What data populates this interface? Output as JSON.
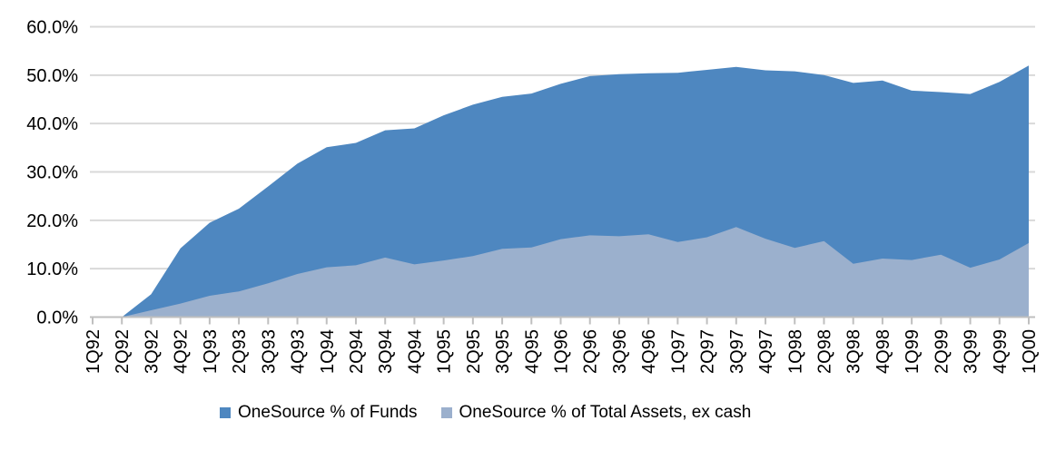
{
  "chart_data": {
    "type": "area",
    "title": "",
    "xlabel": "",
    "ylabel": "",
    "categories": [
      "1Q92",
      "2Q92",
      "3Q92",
      "4Q92",
      "1Q93",
      "2Q93",
      "3Q93",
      "4Q93",
      "1Q94",
      "2Q94",
      "3Q94",
      "4Q94",
      "1Q95",
      "2Q95",
      "3Q95",
      "4Q95",
      "1Q96",
      "2Q96",
      "3Q96",
      "4Q96",
      "1Q97",
      "2Q97",
      "3Q97",
      "4Q97",
      "1Q98",
      "2Q98",
      "3Q98",
      "4Q98",
      "1Q99",
      "2Q99",
      "3Q99",
      "4Q99",
      "1Q00"
    ],
    "series": [
      {
        "name": "OneSource % of Funds",
        "color": "#4E87C0",
        "values": [
          0.0,
          0.0,
          4.7,
          14.2,
          19.5,
          22.4,
          27.0,
          31.7,
          35.1,
          36.0,
          38.6,
          39.0,
          41.7,
          43.9,
          45.5,
          46.2,
          48.2,
          49.8,
          50.2,
          50.4,
          50.5,
          51.1,
          51.7,
          51.0,
          50.8,
          50.0,
          48.4,
          48.9,
          46.8,
          46.5,
          46.1,
          48.6,
          52.0
        ]
      },
      {
        "name": "OneSource % of Total Assets, ex cash",
        "color": "#9BB0CD",
        "values": [
          0.0,
          0.0,
          1.4,
          2.8,
          4.4,
          5.3,
          7.0,
          8.9,
          10.3,
          10.7,
          12.3,
          10.9,
          11.7,
          12.6,
          14.1,
          14.4,
          16.1,
          16.9,
          16.7,
          17.1,
          15.5,
          16.5,
          18.6,
          16.2,
          14.3,
          15.7,
          11.0,
          12.1,
          11.8,
          12.9,
          10.2,
          11.9,
          15.3
        ]
      }
    ],
    "series_overlap": "overlaid (both measured from 0, lighter series drawn in front)",
    "y_axis": {
      "min": 0,
      "max": 60,
      "step": 10,
      "tick_labels": [
        "0.0%",
        "10.0%",
        "20.0%",
        "30.0%",
        "40.0%",
        "50.0%",
        "60.0%"
      ]
    },
    "grid": "horizontal",
    "legend_position": "bottom",
    "colors": {
      "gridline": "#D9D9D9",
      "axis": "#BFBFBF",
      "text": "#000000",
      "background": "#FFFFFF"
    }
  }
}
